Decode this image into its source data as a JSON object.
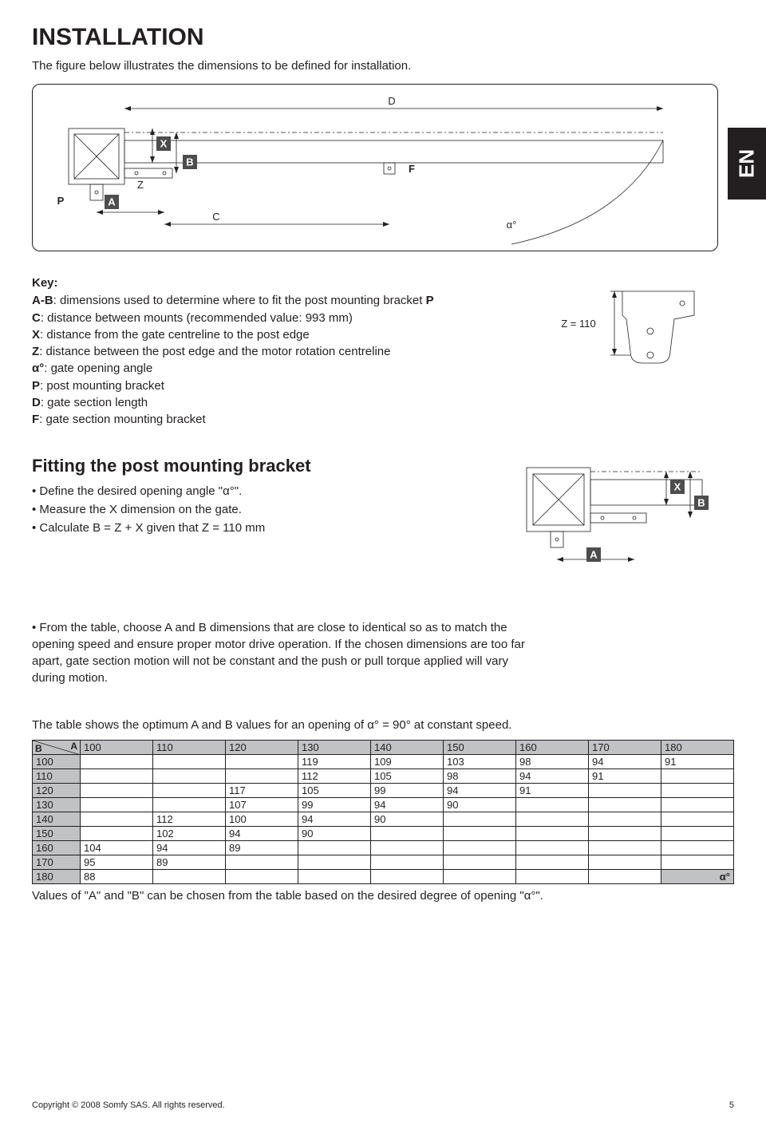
{
  "page": {
    "title": "INSTALLATION",
    "intro": "The figure below illustrates the dimensions to be defined for installation.",
    "lang_tab": "EN",
    "copyright": "Copyright © 2008 Somfy SAS. All rights reserved.",
    "page_number": "5"
  },
  "main_diagram": {
    "labels": {
      "P": "P",
      "A": "A",
      "B": "B",
      "C": "C",
      "D": "D",
      "F": "F",
      "X": "X",
      "Z": "Z",
      "alpha": "α°"
    }
  },
  "key": {
    "title": "Key:",
    "lines": [
      {
        "b": "A-B",
        "t": ": dimensions used to determine where to fit the post mounting bracket ",
        "b2": "P"
      },
      {
        "b": "C",
        "t": ": distance between mounts (recommended value: 993 mm)"
      },
      {
        "b": "X",
        "t": ": distance from the gate centreline to the post edge"
      },
      {
        "b": "Z",
        "t": ": distance between the post edge and the motor rotation centreline"
      },
      {
        "b": "α°",
        "t": ": gate opening angle"
      },
      {
        "b": "P",
        "t": ": post mounting bracket"
      },
      {
        "b": "D",
        "t": ": gate section length"
      },
      {
        "b": "F",
        "t": ": gate section mounting bracket"
      }
    ]
  },
  "z_diagram": {
    "label": "Z = 110"
  },
  "fitting": {
    "title": "Fitting the post mounting bracket",
    "bullets": [
      "Define the desired opening angle \"α°\".",
      "Measure the X dimension on the gate.",
      "Calculate B = Z + X given that Z = 110 mm"
    ]
  },
  "ab_diagram": {
    "X": "X",
    "A": "A",
    "B": "B"
  },
  "table_intro_bullet": "From the table, choose A and B dimensions that are close to identical so as to match the opening speed and ensure proper motor drive operation. If the chosen dimensions are too far apart, gate section motion will not be constant and the push or pull torque applied will vary during motion.",
  "table_caption": "The table shows the optimum A and B values for an opening of α° = 90° at constant speed.",
  "table": {
    "corner": {
      "B": "B",
      "A": "A"
    },
    "col_headers": [
      "100",
      "110",
      "120",
      "130",
      "140",
      "150",
      "160",
      "170",
      "180"
    ],
    "rows": [
      {
        "h": "100",
        "cells": [
          "",
          "",
          "",
          "119",
          "109",
          "103",
          "98",
          "94",
          "91"
        ]
      },
      {
        "h": "110",
        "cells": [
          "",
          "",
          "",
          "112",
          "105",
          "98",
          "94",
          "91",
          ""
        ]
      },
      {
        "h": "120",
        "cells": [
          "",
          "",
          "117",
          "105",
          "99",
          "94",
          "91",
          "",
          ""
        ]
      },
      {
        "h": "130",
        "cells": [
          "",
          "",
          "107",
          "99",
          "94",
          "90",
          "",
          "",
          ""
        ]
      },
      {
        "h": "140",
        "cells": [
          "",
          "112",
          "100",
          "94",
          "90",
          "",
          "",
          "",
          ""
        ]
      },
      {
        "h": "150",
        "cells": [
          "",
          "102",
          "94",
          "90",
          "",
          "",
          "",
          "",
          ""
        ]
      },
      {
        "h": "160",
        "cells": [
          "104",
          "94",
          "89",
          "",
          "",
          "",
          "",
          "",
          ""
        ]
      },
      {
        "h": "170",
        "cells": [
          "95",
          "89",
          "",
          "",
          "",
          "",
          "",
          "",
          ""
        ]
      },
      {
        "h": "180",
        "cells": [
          "88",
          "",
          "",
          "",
          "",
          "",
          "",
          "",
          "α°"
        ]
      }
    ]
  },
  "after_table": "Values of \"A\" and \"B\" can be chosen from the table based on the desired degree of opening \"α°\"."
}
